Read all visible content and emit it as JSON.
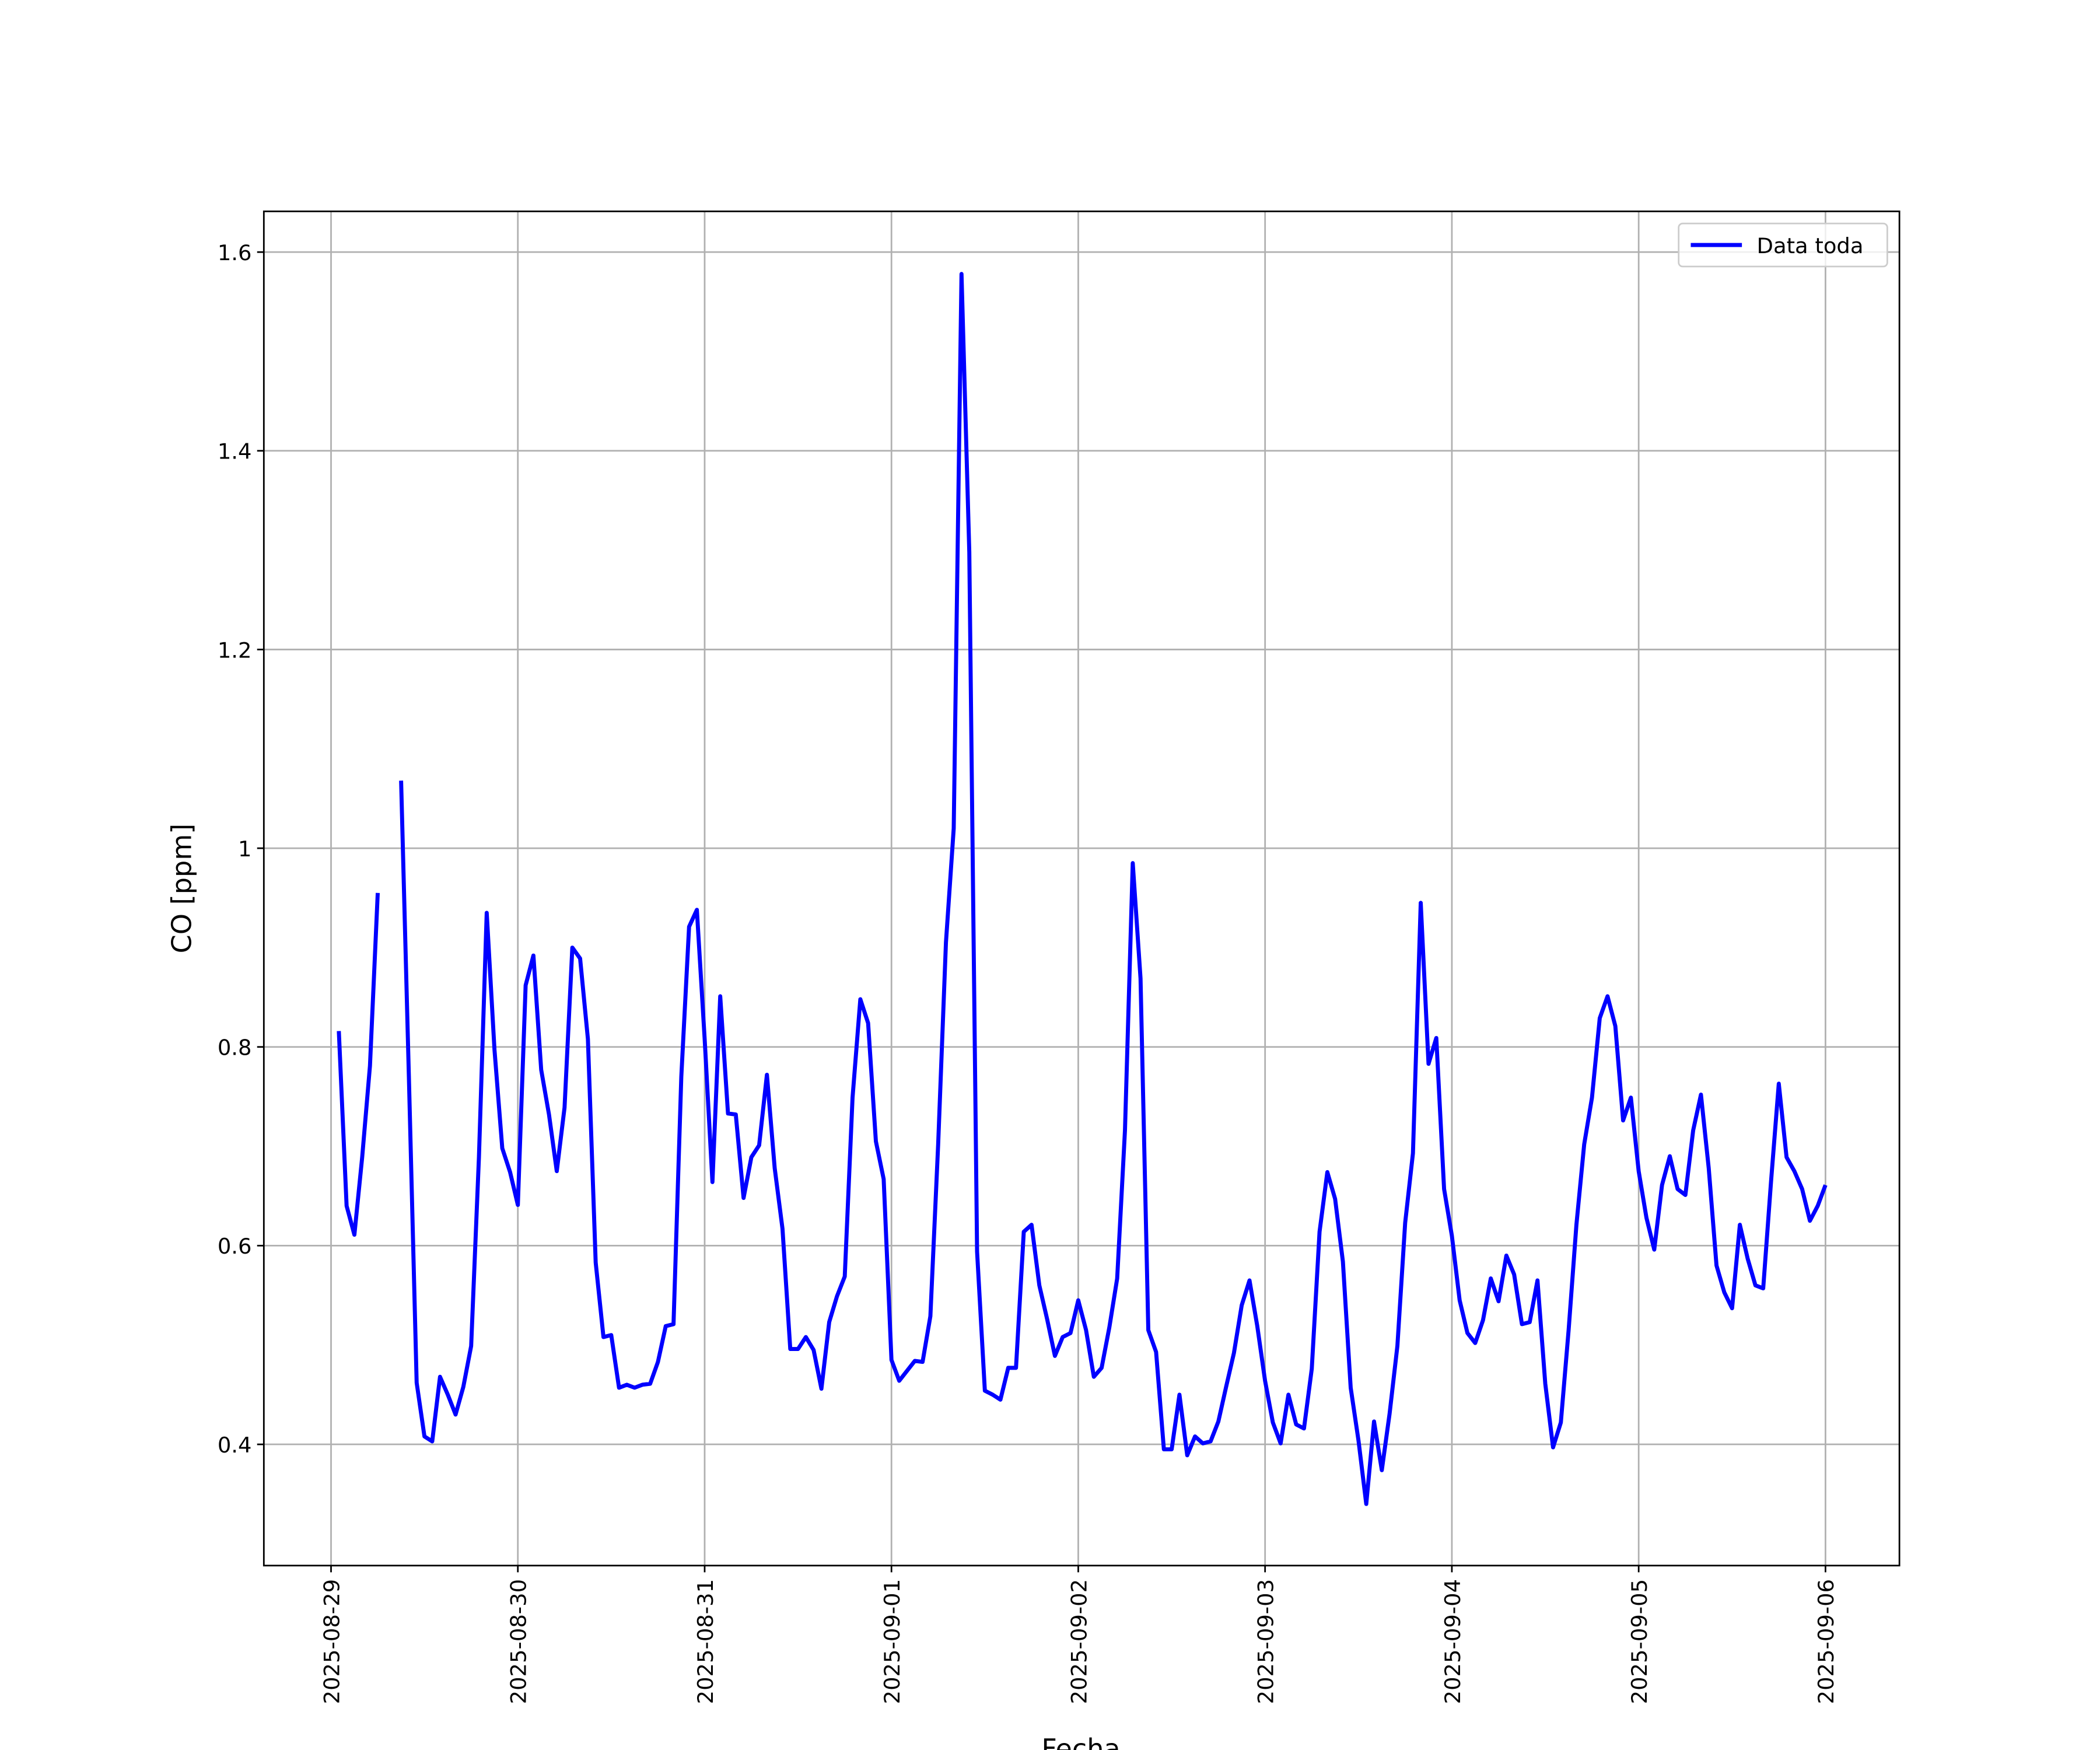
{
  "chart_data": {
    "type": "line",
    "xlabel": "Fecha",
    "ylabel": "CO [ppm]",
    "legend": "upper right",
    "grid": true,
    "xlim": [
      "2025-08-28 15:22",
      "2025-09-06 09:30"
    ],
    "xticks": [
      "2025-08-29",
      "2025-08-30",
      "2025-08-31",
      "2025-09-01",
      "2025-09-02",
      "2025-09-03",
      "2025-09-04",
      "2025-09-05",
      "2025-09-06"
    ],
    "ylim": [
      0.278,
      1.641
    ],
    "yticks": [
      0.4,
      0.6,
      0.8,
      1.0,
      1.2,
      1.4,
      1.6
    ],
    "x": [
      "2025-08-29 01:00",
      "2025-08-29 02:00",
      "2025-08-29 03:00",
      "2025-08-29 04:00",
      "2025-08-29 05:00",
      "2025-08-29 06:00",
      "2025-08-29 07:00",
      "2025-08-29 08:00",
      "2025-08-29 09:00",
      "2025-08-29 10:00",
      "2025-08-29 11:00",
      "2025-08-29 12:00",
      "2025-08-29 13:00",
      "2025-08-29 14:00",
      "2025-08-29 15:00",
      "2025-08-29 16:00",
      "2025-08-29 17:00",
      "2025-08-29 18:00",
      "2025-08-29 19:00",
      "2025-08-29 20:00",
      "2025-08-29 21:00",
      "2025-08-29 22:00",
      "2025-08-29 23:00",
      "2025-08-30 00:00",
      "2025-08-30 01:00",
      "2025-08-30 02:00",
      "2025-08-30 03:00",
      "2025-08-30 04:00",
      "2025-08-30 05:00",
      "2025-08-30 06:00",
      "2025-08-30 07:00",
      "2025-08-30 08:00",
      "2025-08-30 09:00",
      "2025-08-30 10:00",
      "2025-08-30 11:00",
      "2025-08-30 12:00",
      "2025-08-30 13:00",
      "2025-08-30 14:00",
      "2025-08-30 15:00",
      "2025-08-30 16:00",
      "2025-08-30 17:00",
      "2025-08-30 18:00",
      "2025-08-30 19:00",
      "2025-08-30 20:00",
      "2025-08-30 21:00",
      "2025-08-30 22:00",
      "2025-08-30 23:00",
      "2025-08-31 00:00",
      "2025-08-31 01:00",
      "2025-08-31 02:00",
      "2025-08-31 03:00",
      "2025-08-31 04:00",
      "2025-08-31 05:00",
      "2025-08-31 06:00",
      "2025-08-31 07:00",
      "2025-08-31 08:00",
      "2025-08-31 09:00",
      "2025-08-31 10:00",
      "2025-08-31 11:00",
      "2025-08-31 12:00",
      "2025-08-31 13:00",
      "2025-08-31 14:00",
      "2025-08-31 15:00",
      "2025-08-31 16:00",
      "2025-08-31 17:00",
      "2025-08-31 18:00",
      "2025-08-31 19:00",
      "2025-08-31 20:00",
      "2025-08-31 21:00",
      "2025-08-31 22:00",
      "2025-08-31 23:00",
      "2025-09-01 00:00",
      "2025-09-01 01:00",
      "2025-09-01 02:00",
      "2025-09-01 03:00",
      "2025-09-01 04:00",
      "2025-09-01 05:00",
      "2025-09-01 06:00",
      "2025-09-01 07:00",
      "2025-09-01 08:00",
      "2025-09-01 09:00",
      "2025-09-01 10:00",
      "2025-09-01 11:00",
      "2025-09-01 12:00",
      "2025-09-01 13:00",
      "2025-09-01 14:00",
      "2025-09-01 15:00",
      "2025-09-01 16:00",
      "2025-09-01 17:00",
      "2025-09-01 18:00",
      "2025-09-01 19:00",
      "2025-09-01 20:00",
      "2025-09-01 21:00",
      "2025-09-01 22:00",
      "2025-09-01 23:00",
      "2025-09-02 00:00",
      "2025-09-02 01:00",
      "2025-09-02 02:00",
      "2025-09-02 03:00",
      "2025-09-02 04:00",
      "2025-09-02 05:00",
      "2025-09-02 06:00",
      "2025-09-02 07:00",
      "2025-09-02 08:00",
      "2025-09-02 09:00",
      "2025-09-02 10:00",
      "2025-09-02 11:00",
      "2025-09-02 12:00",
      "2025-09-02 13:00",
      "2025-09-02 14:00",
      "2025-09-02 15:00",
      "2025-09-02 16:00",
      "2025-09-02 17:00",
      "2025-09-02 18:00",
      "2025-09-02 19:00",
      "2025-09-02 20:00",
      "2025-09-02 21:00",
      "2025-09-02 22:00",
      "2025-09-02 23:00",
      "2025-09-03 00:00",
      "2025-09-03 01:00",
      "2025-09-03 02:00",
      "2025-09-03 03:00",
      "2025-09-03 04:00",
      "2025-09-03 05:00",
      "2025-09-03 06:00",
      "2025-09-03 07:00",
      "2025-09-03 08:00",
      "2025-09-03 09:00",
      "2025-09-03 10:00",
      "2025-09-03 11:00",
      "2025-09-03 12:00",
      "2025-09-03 13:00",
      "2025-09-03 14:00",
      "2025-09-03 15:00",
      "2025-09-03 16:00",
      "2025-09-03 17:00",
      "2025-09-03 18:00",
      "2025-09-03 19:00",
      "2025-09-03 20:00",
      "2025-09-03 21:00",
      "2025-09-03 22:00",
      "2025-09-03 23:00",
      "2025-09-04 00:00",
      "2025-09-04 01:00",
      "2025-09-04 02:00",
      "2025-09-04 03:00",
      "2025-09-04 04:00",
      "2025-09-04 05:00",
      "2025-09-04 06:00",
      "2025-09-04 07:00",
      "2025-09-04 08:00",
      "2025-09-04 09:00",
      "2025-09-04 10:00",
      "2025-09-04 11:00",
      "2025-09-04 12:00",
      "2025-09-04 13:00",
      "2025-09-04 14:00",
      "2025-09-04 15:00",
      "2025-09-04 16:00",
      "2025-09-04 17:00",
      "2025-09-04 18:00",
      "2025-09-04 19:00",
      "2025-09-04 20:00",
      "2025-09-04 21:00",
      "2025-09-04 22:00",
      "2025-09-04 23:00",
      "2025-09-05 00:00",
      "2025-09-05 01:00",
      "2025-09-05 02:00",
      "2025-09-05 03:00",
      "2025-09-05 04:00",
      "2025-09-05 05:00",
      "2025-09-05 06:00",
      "2025-09-05 07:00",
      "2025-09-05 08:00",
      "2025-09-05 09:00",
      "2025-09-05 10:00",
      "2025-09-05 11:00",
      "2025-09-05 12:00",
      "2025-09-05 13:00",
      "2025-09-05 14:00",
      "2025-09-05 15:00",
      "2025-09-05 16:00",
      "2025-09-05 17:00",
      "2025-09-05 18:00",
      "2025-09-05 19:00",
      "2025-09-05 20:00",
      "2025-09-05 21:00",
      "2025-09-05 22:00",
      "2025-09-05 23:00",
      "2025-09-06 00:00"
    ],
    "series": [
      {
        "name": "Data toda",
        "color": "#0000ff",
        "values": [
          0.816,
          0.64,
          0.611,
          0.689,
          0.781,
          0.955,
          null,
          null,
          1.068,
          0.77,
          0.462,
          0.408,
          0.403,
          0.468,
          0.45,
          0.43,
          0.458,
          0.499,
          0.689,
          0.935,
          0.797,
          0.698,
          0.674,
          0.641,
          0.862,
          0.892,
          0.777,
          0.732,
          0.675,
          0.739,
          0.9,
          0.889,
          0.808,
          0.583,
          0.508,
          0.51,
          0.457,
          0.46,
          0.457,
          0.46,
          0.461,
          0.483,
          0.519,
          0.521,
          0.77,
          0.921,
          0.938,
          0.808,
          0.664,
          0.851,
          0.733,
          0.732,
          0.648,
          0.689,
          0.701,
          0.772,
          0.678,
          0.617,
          0.496,
          0.496,
          0.508,
          0.495,
          0.456,
          0.523,
          0.549,
          0.569,
          0.749,
          0.848,
          0.824,
          0.705,
          0.667,
          0.485,
          0.464,
          0.474,
          0.484,
          0.483,
          0.529,
          0.702,
          0.905,
          1.02,
          1.578,
          1.298,
          0.594,
          0.454,
          0.45,
          0.445,
          0.477,
          0.477,
          0.614,
          0.621,
          0.56,
          0.526,
          0.489,
          0.508,
          0.512,
          0.545,
          0.515,
          0.468,
          0.477,
          0.518,
          0.567,
          0.716,
          0.985,
          0.869,
          0.515,
          0.493,
          0.395,
          0.395,
          0.45,
          0.389,
          0.408,
          0.401,
          0.403,
          0.423,
          0.458,
          0.492,
          0.54,
          0.565,
          0.519,
          0.464,
          0.422,
          0.401,
          0.45,
          0.42,
          0.416,
          0.476,
          0.614,
          0.674,
          0.647,
          0.584,
          0.457,
          0.404,
          0.34,
          0.423,
          0.374,
          0.431,
          0.499,
          0.623,
          0.693,
          0.945,
          0.783,
          0.809,
          0.657,
          0.61,
          0.545,
          0.512,
          0.502,
          0.525,
          0.567,
          0.544,
          0.59,
          0.571,
          0.521,
          0.523,
          0.565,
          0.461,
          0.397,
          0.422,
          0.515,
          0.621,
          0.702,
          0.749,
          0.829,
          0.851,
          0.821,
          0.726,
          0.749,
          0.675,
          0.628,
          0.596,
          0.661,
          0.69,
          0.657,
          0.651,
          0.716,
          0.752,
          0.678,
          0.58,
          0.553,
          0.537,
          0.621,
          0.587,
          0.56,
          0.557,
          0.664,
          0.763,
          0.689,
          0.675,
          0.657,
          0.625,
          0.64,
          0.661
        ]
      }
    ]
  }
}
